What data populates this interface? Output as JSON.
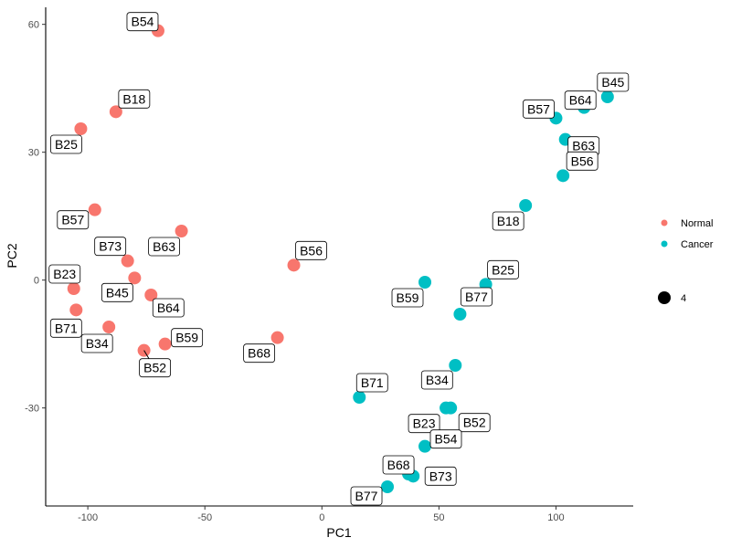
{
  "chart_data": {
    "type": "scatter",
    "xlabel": "PC1",
    "ylabel": "PC2",
    "xlim": [
      -118,
      133
    ],
    "ylim": [
      -53,
      64
    ],
    "xticks": [
      -100,
      -50,
      0,
      50,
      100
    ],
    "yticks": [
      -30,
      0,
      30,
      60
    ],
    "grid": false,
    "legend_position": "right",
    "size_legend": {
      "value": "4"
    },
    "series": [
      {
        "name": "Normal",
        "color": "#F8766D",
        "points": [
          {
            "label": "B54",
            "x": -70,
            "y": 58.5
          },
          {
            "label": "B18",
            "x": -88,
            "y": 39.5
          },
          {
            "label": "B25",
            "x": -103,
            "y": 35.5
          },
          {
            "label": "B57",
            "x": -97,
            "y": 16.5
          },
          {
            "label": "B63",
            "x": -60,
            "y": 11.5
          },
          {
            "label": "B73",
            "x": -83,
            "y": 4.5
          },
          {
            "label": "B56",
            "x": -12,
            "y": 3.5
          },
          {
            "label": "B45",
            "x": -80,
            "y": 0.5
          },
          {
            "label": "B23",
            "x": -106,
            "y": -2
          },
          {
            "label": "B64",
            "x": -73,
            "y": -3.5
          },
          {
            "label": "B71",
            "x": -105,
            "y": -7
          },
          {
            "label": "B34",
            "x": -91,
            "y": -11
          },
          {
            "label": "B68",
            "x": -19,
            "y": -13.5
          },
          {
            "label": "B59",
            "x": -67,
            "y": -15
          },
          {
            "label": "B52",
            "x": -76,
            "y": -16.5
          }
        ]
      },
      {
        "name": "Cancer",
        "color": "#00BFC4",
        "points": [
          {
            "label": "B45",
            "x": 122,
            "y": 43
          },
          {
            "label": "B64",
            "x": 112,
            "y": 40.5
          },
          {
            "label": "B57",
            "x": 100,
            "y": 38
          },
          {
            "label": "B63",
            "x": 104,
            "y": 33
          },
          {
            "label": "B56",
            "x": 103,
            "y": 24.5
          },
          {
            "label": "B18",
            "x": 87,
            "y": 17.5
          },
          {
            "label": "B25",
            "x": 70,
            "y": -1
          },
          {
            "label": "B59",
            "x": 44,
            "y": -0.5
          },
          {
            "label": "B77",
            "x": 59,
            "y": -8
          },
          {
            "label": "B34",
            "x": 57,
            "y": -20
          },
          {
            "label": "B71",
            "x": 16,
            "y": -27.5
          },
          {
            "label": "B23",
            "x": 53,
            "y": -30
          },
          {
            "label": "B52",
            "x": 55,
            "y": -30
          },
          {
            "label": "B54",
            "x": 44,
            "y": -39
          },
          {
            "label": "B68",
            "x": 37,
            "y": -45.5
          },
          {
            "label": "B73",
            "x": 39,
            "y": -46
          },
          {
            "label": "B77",
            "x": 28,
            "y": -48.5
          }
        ]
      }
    ]
  }
}
